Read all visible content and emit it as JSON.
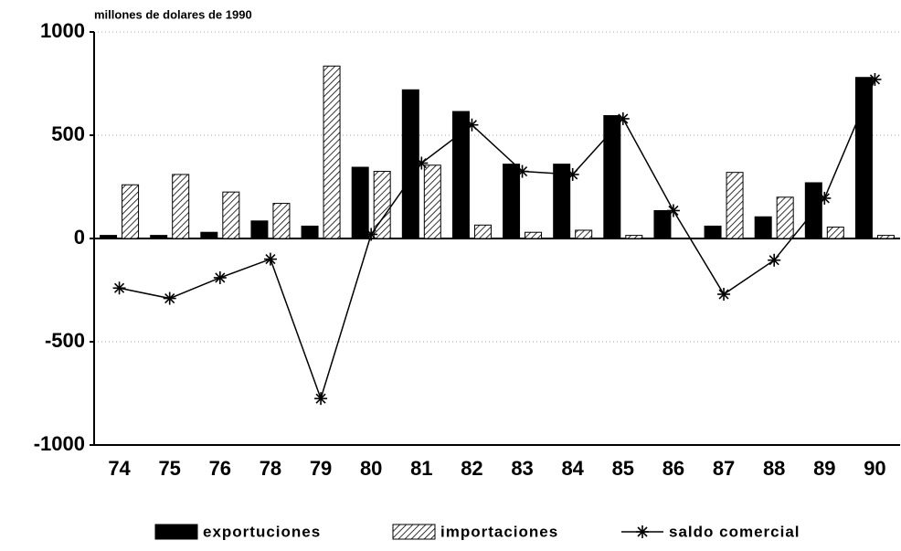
{
  "chart_data": {
    "type": "bar-line",
    "title": "millones de dolares de 1990",
    "categories": [
      "74",
      "75",
      "76",
      "78",
      "79",
      "80",
      "81",
      "82",
      "83",
      "84",
      "85",
      "86",
      "87",
      "88",
      "89",
      "90"
    ],
    "series": [
      {
        "name": "exportuciones",
        "color": "#000000",
        "style": "solid",
        "values": [
          15,
          15,
          30,
          85,
          60,
          345,
          720,
          615,
          360,
          360,
          595,
          135,
          60,
          105,
          270,
          780
        ]
      },
      {
        "name": "importaciones",
        "color": "#000000",
        "style": "hatched",
        "values": [
          260,
          310,
          225,
          170,
          835,
          325,
          355,
          65,
          30,
          40,
          15,
          0,
          320,
          200,
          55,
          15
        ]
      },
      {
        "name": "saldo comercial",
        "color": "#000000",
        "style": "line-star",
        "values": [
          -240,
          -290,
          -190,
          -100,
          -775,
          20,
          365,
          550,
          325,
          310,
          580,
          135,
          -270,
          -105,
          195,
          770
        ]
      }
    ],
    "ylim": [
      -1000,
      1000
    ],
    "yticks": [
      -1000,
      -500,
      0,
      500,
      1000
    ],
    "grid": true
  }
}
